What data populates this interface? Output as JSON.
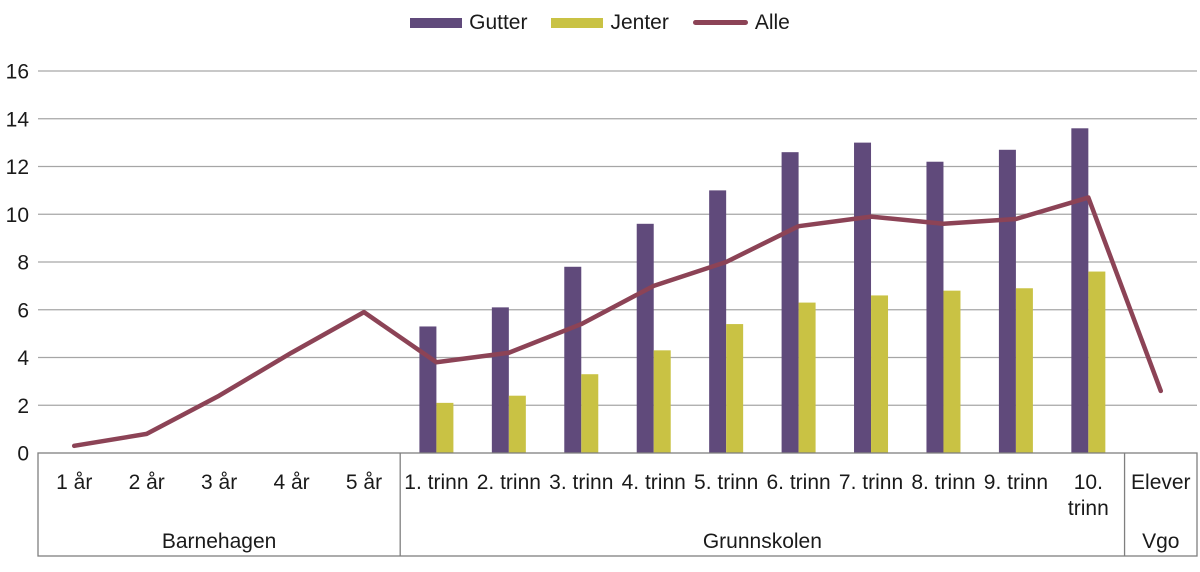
{
  "chart_data": {
    "type": "bar",
    "subtype": "grouped-bars-with-line-overlay",
    "title": "",
    "categories": [
      "1 år",
      "2 år",
      "3 år",
      "4 år",
      "5 år",
      "1. trinn",
      "2. trinn",
      "3. trinn",
      "4. trinn",
      "5. trinn",
      "6. trinn",
      "7. trinn",
      "8. trinn",
      "9. trinn",
      "10. trinn",
      "Elever"
    ],
    "category_groups": [
      {
        "label": "Barnehagen",
        "from": 0,
        "to": 4
      },
      {
        "label": "Grunnskolen",
        "from": 5,
        "to": 14
      },
      {
        "label": "Vgo",
        "from": 15,
        "to": 15
      }
    ],
    "series": [
      {
        "name": "Gutter",
        "type": "bar",
        "color": "#604a7b",
        "values": [
          null,
          null,
          null,
          null,
          null,
          5.3,
          6.1,
          7.8,
          9.6,
          11.0,
          12.6,
          13.0,
          12.2,
          12.7,
          13.6,
          null
        ]
      },
      {
        "name": "Jenter",
        "type": "bar",
        "color": "#c9c244",
        "values": [
          null,
          null,
          null,
          null,
          null,
          2.1,
          2.4,
          3.3,
          4.3,
          5.4,
          6.3,
          6.6,
          6.8,
          6.9,
          7.6,
          null
        ]
      },
      {
        "name": "Alle",
        "type": "line",
        "color": "#8c4356",
        "values": [
          0.3,
          0.8,
          2.4,
          4.2,
          5.9,
          3.8,
          4.2,
          5.4,
          7.0,
          8.0,
          9.5,
          9.9,
          9.6,
          9.8,
          10.7,
          2.6
        ]
      }
    ],
    "y_axis": {
      "min": 0,
      "max": 16,
      "step": 2,
      "tick_labels": [
        "0",
        "2",
        "4",
        "6",
        "8",
        "10",
        "12",
        "14",
        "16"
      ]
    },
    "x_axis": {
      "label": ""
    },
    "grid": true,
    "legend_position": "top",
    "colors": {
      "gridline": "#a6a6a6",
      "axis_box_border": "#7f7f7f",
      "text": "#1a1a1a"
    }
  }
}
